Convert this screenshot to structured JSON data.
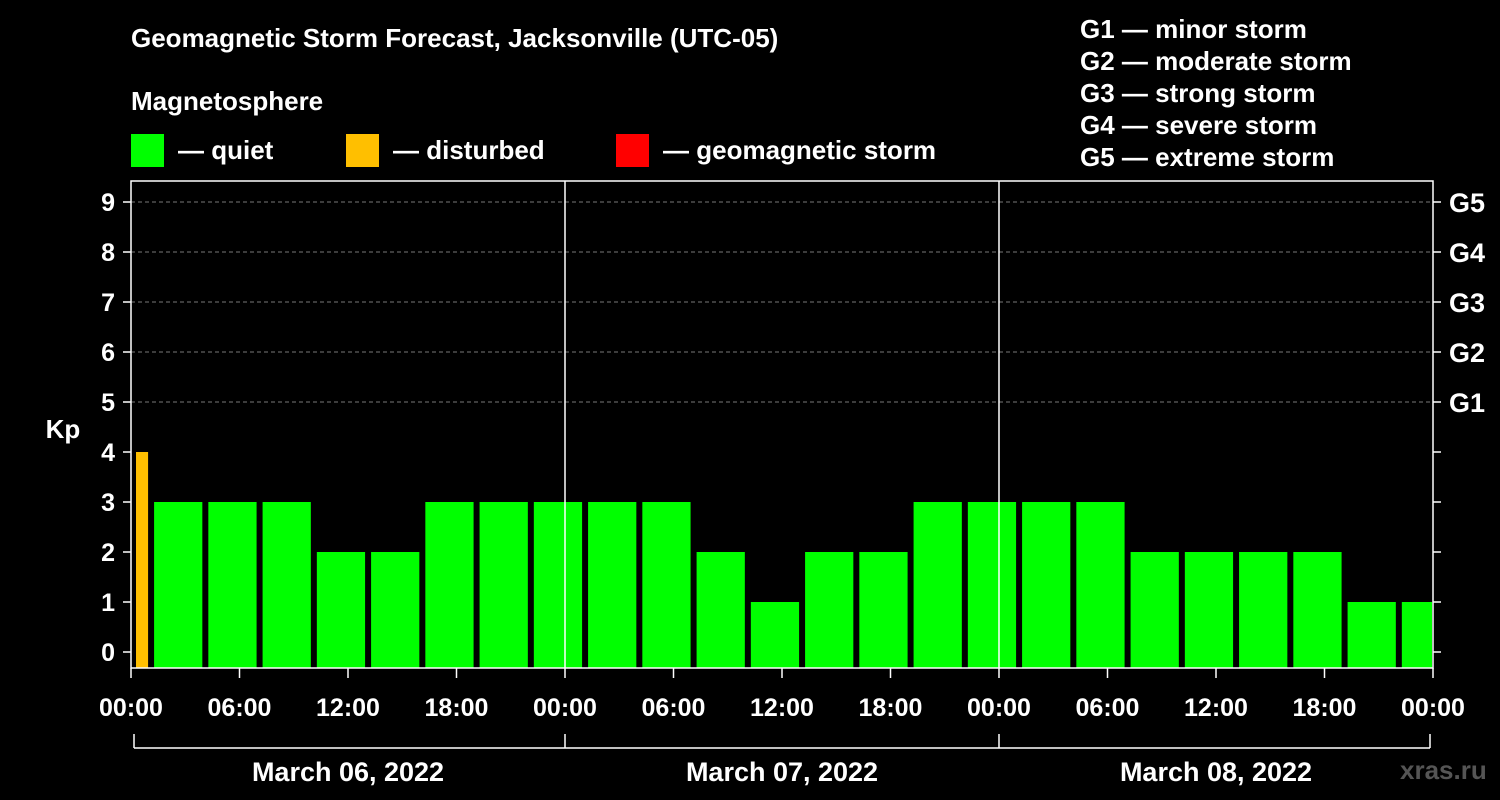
{
  "chart_data": {
    "type": "bar",
    "title": "Geomagnetic Storm Forecast, Jacksonville (UTC-05)",
    "ylabel": "Kp",
    "ylim": [
      0,
      9
    ],
    "yticks": [
      "0",
      "1",
      "2",
      "3",
      "4",
      "5",
      "6",
      "7",
      "8",
      "9"
    ],
    "right_ticks": [
      {
        "kp": 5,
        "label": "G1"
      },
      {
        "kp": 6,
        "label": "G2"
      },
      {
        "kp": 7,
        "label": "G3"
      },
      {
        "kp": 8,
        "label": "G4"
      },
      {
        "kp": 9,
        "label": "G5"
      }
    ],
    "x_range_hours": [
      0,
      72
    ],
    "xticks": [
      {
        "h": 0,
        "label": "00:00"
      },
      {
        "h": 6,
        "label": "06:00"
      },
      {
        "h": 12,
        "label": "12:00"
      },
      {
        "h": 18,
        "label": "18:00"
      },
      {
        "h": 24,
        "label": "00:00"
      },
      {
        "h": 30,
        "label": "06:00"
      },
      {
        "h": 36,
        "label": "12:00"
      },
      {
        "h": 42,
        "label": "18:00"
      },
      {
        "h": 48,
        "label": "00:00"
      },
      {
        "h": 54,
        "label": "06:00"
      },
      {
        "h": 60,
        "label": "12:00"
      },
      {
        "h": 66,
        "label": "18:00"
      },
      {
        "h": 72,
        "label": "00:00"
      }
    ],
    "days": [
      "March 06, 2022",
      "March 07, 2022",
      "March 08, 2022"
    ],
    "bars": [
      {
        "start": 0,
        "end": 1,
        "kp": 4,
        "status": "disturbed"
      },
      {
        "start": 1,
        "end": 4,
        "kp": 3,
        "status": "quiet"
      },
      {
        "start": 4,
        "end": 7,
        "kp": 3,
        "status": "quiet"
      },
      {
        "start": 7,
        "end": 10,
        "kp": 3,
        "status": "quiet"
      },
      {
        "start": 10,
        "end": 13,
        "kp": 2,
        "status": "quiet"
      },
      {
        "start": 13,
        "end": 16,
        "kp": 2,
        "status": "quiet"
      },
      {
        "start": 16,
        "end": 19,
        "kp": 3,
        "status": "quiet"
      },
      {
        "start": 19,
        "end": 22,
        "kp": 3,
        "status": "quiet"
      },
      {
        "start": 22,
        "end": 25,
        "kp": 3,
        "status": "quiet"
      },
      {
        "start": 25,
        "end": 28,
        "kp": 3,
        "status": "quiet"
      },
      {
        "start": 28,
        "end": 31,
        "kp": 3,
        "status": "quiet"
      },
      {
        "start": 31,
        "end": 34,
        "kp": 2,
        "status": "quiet"
      },
      {
        "start": 34,
        "end": 37,
        "kp": 1,
        "status": "quiet"
      },
      {
        "start": 37,
        "end": 40,
        "kp": 2,
        "status": "quiet"
      },
      {
        "start": 40,
        "end": 43,
        "kp": 2,
        "status": "quiet"
      },
      {
        "start": 43,
        "end": 46,
        "kp": 3,
        "status": "quiet"
      },
      {
        "start": 46,
        "end": 49,
        "kp": 3,
        "status": "quiet"
      },
      {
        "start": 49,
        "end": 52,
        "kp": 3,
        "status": "quiet"
      },
      {
        "start": 52,
        "end": 55,
        "kp": 3,
        "status": "quiet"
      },
      {
        "start": 55,
        "end": 58,
        "kp": 2,
        "status": "quiet"
      },
      {
        "start": 58,
        "end": 61,
        "kp": 2,
        "status": "quiet"
      },
      {
        "start": 61,
        "end": 64,
        "kp": 2,
        "status": "quiet"
      },
      {
        "start": 64,
        "end": 67,
        "kp": 2,
        "status": "quiet"
      },
      {
        "start": 67,
        "end": 70,
        "kp": 1,
        "status": "quiet"
      },
      {
        "start": 70,
        "end": 72,
        "kp": 1,
        "status": "quiet"
      }
    ],
    "colors": {
      "quiet": "#00ff00",
      "disturbed": "#ffbf00",
      "storm": "#ff0000"
    }
  },
  "legend": {
    "title": "Magnetosphere",
    "quiet": "— quiet",
    "disturbed": "— disturbed",
    "storm": "— geomagnetic storm"
  },
  "storm_levels": [
    "G1 — minor storm",
    "G2 — moderate storm",
    "G3 — strong storm",
    "G4 — severe storm",
    "G5 — extreme storm"
  ],
  "watermark": "xras.ru"
}
